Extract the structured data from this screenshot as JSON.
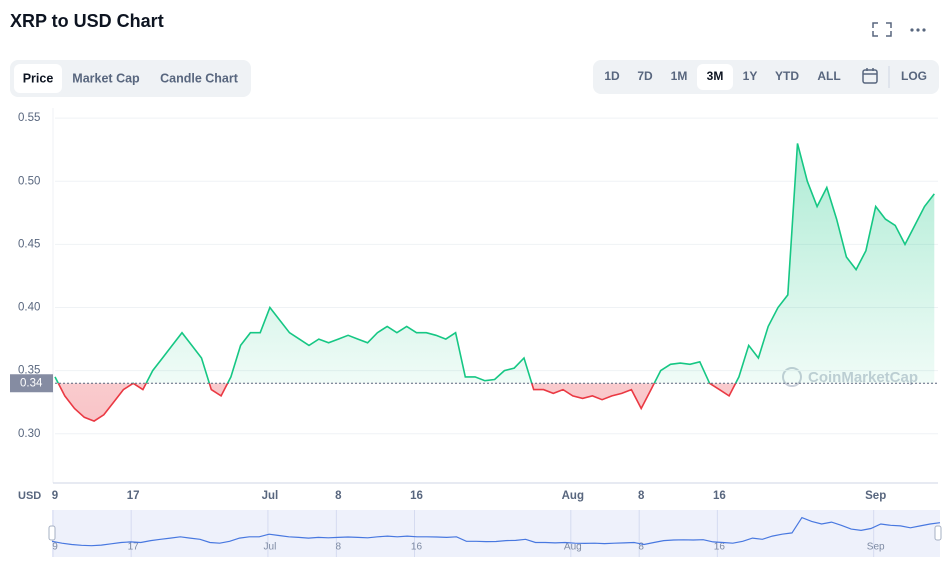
{
  "chart_data": {
    "type": "line",
    "title": "XRP to USD Chart",
    "tabs": [
      "Price",
      "Market Cap",
      "Candle Chart"
    ],
    "ranges": [
      "1D",
      "7D",
      "1M",
      "3M",
      "1Y",
      "YTD",
      "ALL"
    ],
    "scale_button": "LOG",
    "currency": "USD",
    "watermark": "CoinMarketCap",
    "baseline": {
      "value": 0.34,
      "label": "0.34"
    },
    "up_color": "#16c784",
    "down_color": "#ea3943",
    "grid": true,
    "ylim": [
      0.261,
      0.558
    ],
    "yticks": [
      {
        "value": 0.3,
        "label": "0.30"
      },
      0.35,
      {
        "value": 0.4,
        "label": "0.40"
      },
      0.45,
      {
        "value": 0.5,
        "label": "0.50"
      },
      0.55
    ],
    "categories": [
      "9",
      null,
      null,
      null,
      null,
      null,
      null,
      null,
      "17",
      null,
      null,
      null,
      null,
      null,
      null,
      null,
      null,
      null,
      null,
      null,
      null,
      null,
      "Jul",
      null,
      null,
      null,
      null,
      null,
      null,
      "8",
      null,
      null,
      null,
      null,
      null,
      null,
      null,
      "16",
      null,
      null,
      null,
      null,
      null,
      null,
      null,
      null,
      null,
      null,
      null,
      null,
      null,
      null,
      null,
      "Aug",
      null,
      null,
      null,
      null,
      null,
      null,
      "8",
      null,
      null,
      null,
      null,
      null,
      null,
      null,
      "16",
      null,
      null,
      null,
      null,
      null,
      null,
      null,
      null,
      null,
      null,
      null,
      null,
      null,
      null,
      null,
      "Sep",
      null,
      null,
      null,
      null,
      null,
      null
    ],
    "values": [
      0.345,
      0.33,
      0.32,
      0.313,
      0.31,
      0.315,
      0.325,
      0.335,
      0.34,
      0.335,
      0.35,
      0.36,
      0.37,
      0.38,
      0.37,
      0.36,
      0.335,
      0.33,
      0.345,
      0.37,
      0.38,
      0.38,
      0.4,
      0.39,
      0.38,
      0.375,
      0.37,
      0.375,
      0.372,
      0.375,
      0.378,
      0.375,
      0.372,
      0.38,
      0.385,
      0.38,
      0.385,
      0.38,
      0.38,
      0.378,
      0.375,
      0.38,
      0.345,
      0.345,
      0.342,
      0.343,
      0.35,
      0.352,
      0.36,
      0.335,
      0.335,
      0.332,
      0.335,
      0.33,
      0.328,
      0.33,
      0.327,
      0.33,
      0.332,
      0.335,
      0.32,
      0.335,
      0.35,
      0.355,
      0.356,
      0.355,
      0.357,
      0.34,
      0.335,
      0.33,
      0.345,
      0.37,
      0.36,
      0.385,
      0.4,
      0.41,
      0.53,
      0.5,
      0.48,
      0.495,
      0.47,
      0.44,
      0.43,
      0.445,
      0.48,
      0.47,
      0.465,
      0.45,
      0.465,
      0.48,
      0.49
    ]
  }
}
